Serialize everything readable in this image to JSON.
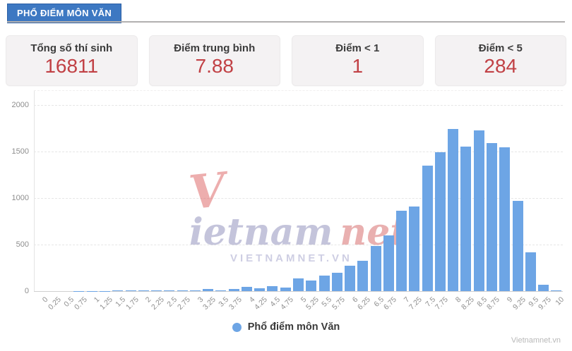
{
  "header": {
    "title": "PHỔ ĐIỂM MÔN VĂN"
  },
  "stats": [
    {
      "label": "Tổng số thí sinh",
      "value": "16811"
    },
    {
      "label": "Điểm trung bình",
      "value": "7.88"
    },
    {
      "label": "Điểm < 1",
      "value": "1"
    },
    {
      "label": "Điểm < 5",
      "value": "284"
    }
  ],
  "chart_data": {
    "type": "bar",
    "title": "",
    "xlabel": "",
    "ylabel": "",
    "categories": [
      "0",
      "0.25",
      "0.5",
      "0.75",
      "1",
      "1.25",
      "1.5",
      "1.75",
      "2",
      "2.25",
      "2.5",
      "2.75",
      "3",
      "3.25",
      "3.5",
      "3.75",
      "4",
      "4.25",
      "4.5",
      "4.75",
      "5",
      "5.25",
      "5.5",
      "5.75",
      "6",
      "6.25",
      "6.5",
      "6.75",
      "7",
      "7.25",
      "7.5",
      "7.75",
      "8",
      "8.25",
      "8.5",
      "8.75",
      "9",
      "9.25",
      "9.5",
      "9.75",
      "10"
    ],
    "values": [
      0,
      0,
      0,
      1,
      2,
      3,
      5,
      6,
      8,
      9,
      10,
      11,
      8,
      20,
      10,
      25,
      43,
      30,
      53,
      40,
      135,
      110,
      165,
      200,
      270,
      325,
      485,
      600,
      860,
      910,
      1350,
      1490,
      1740,
      1555,
      1730,
      1590,
      1544,
      970,
      420,
      70,
      8
    ],
    "series_name": "Phổ điểm môn Văn",
    "ylim": [
      0,
      2000
    ],
    "yticks": [
      0,
      500,
      1000,
      1500,
      2000
    ],
    "grid": true,
    "grid_style": "dashed",
    "legend_position": "bottom",
    "legend_label": "Phổ điểm môn Văn",
    "bar_color": "#6da5e5"
  },
  "watermark": {
    "v": "V",
    "name": "ietnam",
    "suffix": "net",
    "subtitle": "VIETNAMNET.VN"
  },
  "footer": {
    "credit": "Vietnamnet.vn"
  },
  "colors": {
    "header_blue": "#3d78c2",
    "header_border": "#2b5fa5",
    "stat_value_red": "#c14145",
    "bar_blue": "#6da5e5",
    "card_bg": "#f4f2f3"
  }
}
